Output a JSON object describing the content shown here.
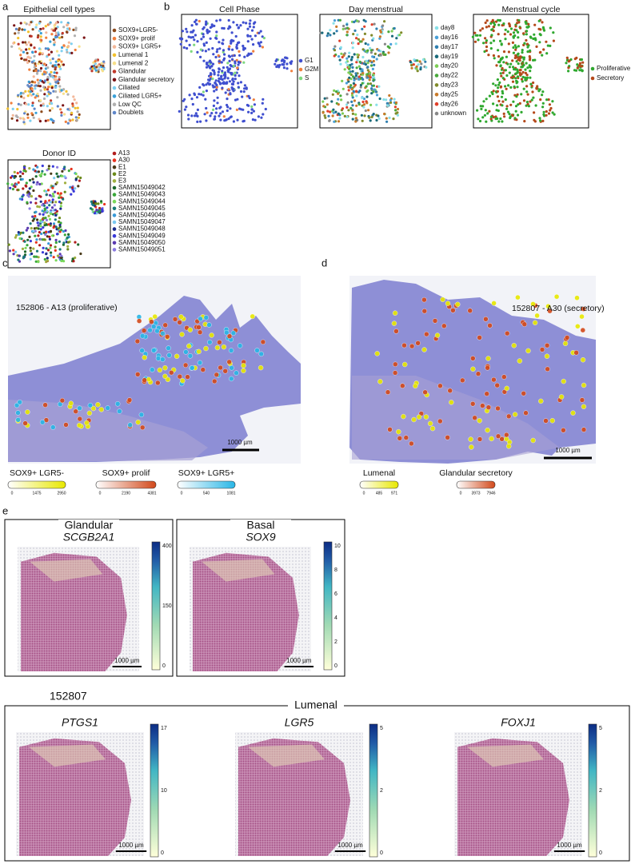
{
  "panel_a": {
    "letter": "a",
    "title": "Epithelial cell types",
    "legend": [
      {
        "label": "SOX9+LGR5-",
        "color": "#8c4a1c"
      },
      {
        "label": "SOX9+ prolif",
        "color": "#f07f3c"
      },
      {
        "label": "SOX9+ LGR5+",
        "color": "#f3b89a"
      },
      {
        "label": "Lumenal 1",
        "color": "#f2c12e"
      },
      {
        "label": "Lumenal 2",
        "color": "#f7e08a"
      },
      {
        "label": "Glandular",
        "color": "#c0392b"
      },
      {
        "label": "Glandular secretory",
        "color": "#7b1416"
      },
      {
        "label": "Ciliated",
        "color": "#7fd0f0"
      },
      {
        "label": "Ciliated LGR5+",
        "color": "#3aa0d8"
      },
      {
        "label": "Low QC",
        "color": "#b0b0b0"
      },
      {
        "label": "Doublets",
        "color": "#5f86c9"
      }
    ]
  },
  "panel_b": {
    "letter": "b",
    "plots": [
      {
        "title": "Cell Phase",
        "legend": [
          {
            "label": "G1",
            "color": "#3f4fcf"
          },
          {
            "label": "G2M",
            "color": "#f07f3c"
          },
          {
            "label": "S",
            "color": "#7ed87e"
          }
        ]
      },
      {
        "title": "Day menstrual",
        "legend": [
          {
            "label": "day8",
            "color": "#88e0e8"
          },
          {
            "label": "day16",
            "color": "#4aa0d8"
          },
          {
            "label": "day17",
            "color": "#2f7fb0"
          },
          {
            "label": "day19",
            "color": "#1a6a7a"
          },
          {
            "label": "day20",
            "color": "#7ccd55"
          },
          {
            "label": "day22",
            "color": "#48a83a"
          },
          {
            "label": "day23",
            "color": "#808a2a"
          },
          {
            "label": "day25",
            "color": "#c87a2a"
          },
          {
            "label": "day26",
            "color": "#e0402a"
          },
          {
            "label": "unknown",
            "color": "#888888"
          }
        ]
      },
      {
        "title": "Menstrual cycle",
        "legend": [
          {
            "label": "Proliferative",
            "color": "#2fa82f"
          },
          {
            "label": "Secretory",
            "color": "#b5491b"
          }
        ]
      }
    ]
  },
  "donor": {
    "title": "Donor ID",
    "legend": [
      {
        "label": "A13",
        "color": "#b21e1e"
      },
      {
        "label": "A30",
        "color": "#e8321e"
      },
      {
        "label": "E1",
        "color": "#4a3a1a"
      },
      {
        "label": "E2",
        "color": "#6a8a1a"
      },
      {
        "label": "E3",
        "color": "#a0b040"
      },
      {
        "label": "SAMN15049042",
        "color": "#1e6a2e"
      },
      {
        "label": "SAMN15049043",
        "color": "#3aa83a"
      },
      {
        "label": "SAMN15049044",
        "color": "#7ad85a"
      },
      {
        "label": "SAMN15049045",
        "color": "#1a7a7a"
      },
      {
        "label": "SAMN15049046",
        "color": "#3a9ad8"
      },
      {
        "label": "SAMN15049047",
        "color": "#7ac8f0"
      },
      {
        "label": "SAMN15049048",
        "color": "#1a2a8a"
      },
      {
        "label": "SAMN15049049",
        "color": "#3a3ad8"
      },
      {
        "label": "SAMN15049050",
        "color": "#5a3ab0"
      },
      {
        "label": "SAMN15049051",
        "color": "#8a7ae0"
      }
    ]
  },
  "panel_c": {
    "letter": "c",
    "sample": "152806 - A13 (proliferative)",
    "scale": "1000 µm",
    "colorbars": [
      {
        "label": "SOX9+ LGR5-",
        "color": "#e8e800",
        "ticks": [
          0,
          1475,
          2950
        ]
      },
      {
        "label": "SOX9+ prolif",
        "color": "#d2491b",
        "ticks": [
          0,
          2190,
          4381
        ]
      },
      {
        "label": "SOX9+ LGR5+",
        "color": "#29b6e6",
        "ticks": [
          0,
          540,
          1081
        ]
      }
    ]
  },
  "panel_d": {
    "letter": "d",
    "sample": "152807 - A30 (secretory)",
    "scale": "1000 µm",
    "colorbars": [
      {
        "label": "Lumenal",
        "color": "#e8e800",
        "ticks": [
          0,
          485,
          971
        ]
      },
      {
        "label": "Glandular secretory",
        "color": "#d2491b",
        "ticks": [
          0,
          3973,
          7946
        ]
      }
    ]
  },
  "panel_e": {
    "letter": "e",
    "top": [
      {
        "group": "Glandular",
        "gene": "SCGB2A1",
        "scale": "1000 µm",
        "ticks": [
          400,
          150,
          0
        ]
      },
      {
        "group": "Basal",
        "gene": "SOX9",
        "scale": "1000 µm",
        "ticks": [
          10,
          8,
          6,
          4,
          2,
          0
        ]
      }
    ],
    "sample": "152807",
    "group": "Lumenal",
    "bottom": [
      {
        "gene": "PTGS1",
        "scale": "1000 µm",
        "ticks": [
          17,
          10,
          0
        ]
      },
      {
        "gene": "LGR5",
        "scale": "1000 µm",
        "ticks": [
          5,
          2,
          0
        ]
      },
      {
        "gene": "FOXJ1",
        "scale": "1000 µm",
        "ticks": [
          5,
          2,
          0
        ]
      }
    ]
  }
}
